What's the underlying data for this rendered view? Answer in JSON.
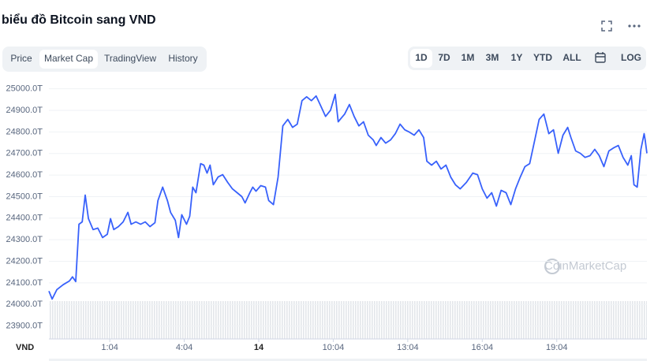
{
  "tabs": [
    "Price",
    "Market Cap",
    "TradingView",
    "History"
  ],
  "selected_tab": 1,
  "ranges": [
    "1D",
    "7D",
    "1M",
    "3M",
    "1Y",
    "YTD",
    "ALL",
    "LOG"
  ],
  "selected_range": 0,
  "watermark": "CoinMarketCap",
  "chart_data": {
    "type": "line",
    "title": "biểu đồ Bitcoin sang VND",
    "currency": "VND",
    "grid": true,
    "xlim": [
      -1.45,
      22.63
    ],
    "ylim": [
      23840,
      25050
    ],
    "xticks": [
      {
        "value": 1,
        "label": "1:04"
      },
      {
        "value": 4,
        "label": "4:04"
      },
      {
        "value": 7,
        "label": "14"
      },
      {
        "value": 10,
        "label": "10:04"
      },
      {
        "value": 13,
        "label": "13:04"
      },
      {
        "value": 16,
        "label": "16:04"
      },
      {
        "value": 19,
        "label": "19:04"
      }
    ],
    "yticks": [
      {
        "value": 23900,
        "label": "23900.0T"
      },
      {
        "value": 24000,
        "label": "24000.0T"
      },
      {
        "value": 24100,
        "label": "24100.0T"
      },
      {
        "value": 24200,
        "label": "24200.0T"
      },
      {
        "value": 24300,
        "label": "24300.0T"
      },
      {
        "value": 24400,
        "label": "24400.0T"
      },
      {
        "value": 24500,
        "label": "24500.0T"
      },
      {
        "value": 24600,
        "label": "24600.0T"
      },
      {
        "value": 24700,
        "label": "24700.0T"
      },
      {
        "value": 24800,
        "label": "24800.0T"
      },
      {
        "value": 24900,
        "label": "24900.0T"
      },
      {
        "value": 25000,
        "label": "25000.0T"
      }
    ],
    "x": [
      -1.45,
      -1.32,
      -1.13,
      -0.88,
      -0.62,
      -0.5,
      -0.37,
      -0.24,
      -0.11,
      0.01,
      0.14,
      0.33,
      0.52,
      0.71,
      0.9,
      1.03,
      1.16,
      1.35,
      1.54,
      1.73,
      1.86,
      2.05,
      2.24,
      2.43,
      2.62,
      2.82,
      2.94,
      3.13,
      3.32,
      3.45,
      3.64,
      3.77,
      3.9,
      4.09,
      4.22,
      4.34,
      4.47,
      4.66,
      4.79,
      4.92,
      5.04,
      5.17,
      5.36,
      5.55,
      5.75,
      5.94,
      6.13,
      6.32,
      6.45,
      6.64,
      6.76,
      6.89,
      7.08,
      7.27,
      7.4,
      7.59,
      7.78,
      7.97,
      8.17,
      8.36,
      8.55,
      8.74,
      8.93,
      9.12,
      9.31,
      9.5,
      9.69,
      9.89,
      10.08,
      10.2,
      10.33,
      10.46,
      10.65,
      10.84,
      11.03,
      11.22,
      11.41,
      11.61,
      11.73,
      11.92,
      12.11,
      12.31,
      12.5,
      12.69,
      12.88,
      13.07,
      13.26,
      13.45,
      13.64,
      13.77,
      13.96,
      14.15,
      14.34,
      14.54,
      14.73,
      14.92,
      15.11,
      15.36,
      15.62,
      15.81,
      16.0,
      16.19,
      16.38,
      16.57,
      16.76,
      16.96,
      17.15,
      17.34,
      17.53,
      17.72,
      17.91,
      18.1,
      18.29,
      18.48,
      18.68,
      18.87,
      19.06,
      19.25,
      19.44,
      19.57,
      19.76,
      19.95,
      20.14,
      20.34,
      20.53,
      20.71,
      20.9,
      21.1,
      21.29,
      21.48,
      21.67,
      21.86,
      22.0,
      22.11,
      22.24,
      22.39,
      22.52,
      22.56,
      22.63
    ],
    "series": [
      {
        "name": "Market Cap",
        "color": "#3861fb",
        "values": [
          24062,
          24025,
          24069,
          24091,
          24109,
          24128,
          24106,
          24372,
          24383,
          24507,
          24398,
          24347,
          24354,
          24310,
          24325,
          24398,
          24347,
          24361,
          24383,
          24427,
          24372,
          24383,
          24372,
          24383,
          24361,
          24379,
          24482,
          24544,
          24482,
          24427,
          24390,
          24310,
          24416,
          24372,
          24409,
          24544,
          24518,
          24653,
          24646,
          24609,
          24646,
          24555,
          24591,
          24602,
          24566,
          24536,
          24518,
          24500,
          24471,
          24518,
          24544,
          24525,
          24551,
          24544,
          24482,
          24463,
          24591,
          24828,
          24858,
          24821,
          24836,
          24945,
          24963,
          24945,
          24967,
          24920,
          24872,
          24901,
          24974,
          24847,
          24865,
          24883,
          24927,
          24872,
          24828,
          24847,
          24785,
          24763,
          24737,
          24774,
          24748,
          24763,
          24792,
          24836,
          24810,
          24799,
          24785,
          24810,
          24774,
          24664,
          24646,
          24664,
          24628,
          24646,
          24591,
          24555,
          24536,
          24566,
          24609,
          24602,
          24536,
          24493,
          24518,
          24456,
          24529,
          24518,
          24463,
          24536,
          24591,
          24639,
          24653,
          24755,
          24858,
          24883,
          24792,
          24810,
          24701,
          24785,
          24821,
          24774,
          24712,
          24701,
          24682,
          24690,
          24719,
          24690,
          24639,
          24712,
          24726,
          24737,
          24682,
          24646,
          24690,
          24555,
          24544,
          24719,
          24792,
          24763,
          24701
        ]
      }
    ]
  }
}
